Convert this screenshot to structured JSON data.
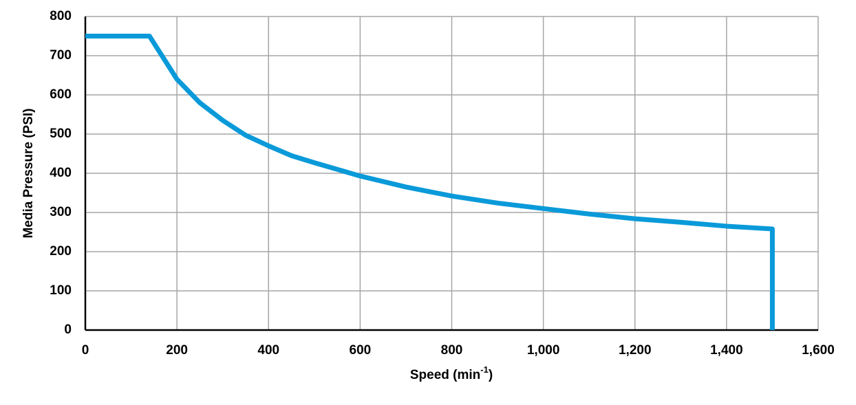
{
  "chart_data": {
    "type": "line",
    "xlabel": [
      "Speed (min",
      "-1",
      ")"
    ],
    "ylabel": "Media Pressure (PSI)",
    "x": [
      0,
      140,
      200,
      250,
      300,
      350,
      400,
      450,
      500,
      600,
      700,
      800,
      900,
      1000,
      1100,
      1200,
      1300,
      1400,
      1500,
      1500
    ],
    "series": [
      {
        "color": "#0a9ad9",
        "values": [
          750,
          750,
          640,
          580,
          535,
          497,
          470,
          445,
          427,
          393,
          365,
          342,
          324,
          310,
          296,
          284,
          275,
          265,
          258,
          0
        ]
      }
    ],
    "xlim": [
      0,
      1600
    ],
    "xticks": [
      0,
      200,
      400,
      600,
      800,
      {
        "value": 1000,
        "label": "1,000"
      },
      {
        "value": 1200,
        "label": "1,200"
      },
      {
        "value": 1400,
        "label": "1,400"
      },
      {
        "value": 1600,
        "label": "1,600"
      }
    ],
    "ylim": [
      0,
      800
    ],
    "yticks": [
      0,
      100,
      200,
      300,
      400,
      500,
      600,
      700,
      800
    ],
    "grid": true
  }
}
